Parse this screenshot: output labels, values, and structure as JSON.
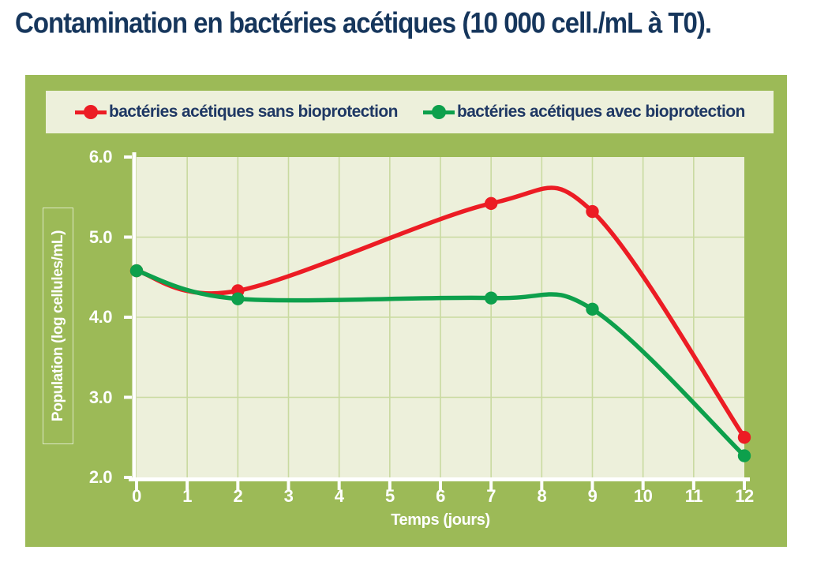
{
  "page_title": "Contamination en bactéries acétiques (10 000 cell./mL à T0).",
  "colors": {
    "panel": "#9cba57",
    "plotbg": "#edf0db",
    "grid": "#c9daa0",
    "red": "#ec1c24",
    "green": "#0da04c",
    "navy": "#1f3864",
    "title_navy": "#16365c",
    "axis_white": "#ffffff"
  },
  "chart_data": {
    "type": "line",
    "title": "Contamination en bactéries acétiques (10 000 cell./mL à T0).",
    "xlabel": "Temps (jours)",
    "ylabel": "Population (log cellules/mL)",
    "xlim": [
      0,
      12
    ],
    "ylim": [
      2.0,
      6.0
    ],
    "xticks": [
      0,
      1,
      2,
      3,
      4,
      5,
      6,
      7,
      8,
      9,
      10,
      11,
      12
    ],
    "ytick_labels": [
      "6.0",
      "5.0",
      "4.0",
      "3.0",
      "2.0"
    ],
    "ytick_values": [
      6.0,
      5.0,
      4.0,
      3.0,
      2.0
    ],
    "grid": true,
    "legend_position": "top",
    "series": [
      {
        "name": "bactéries acétiques sans bioprotection",
        "color": "#ec1c24",
        "x": [
          0,
          2,
          7,
          9,
          12
        ],
        "y": [
          4.58,
          4.33,
          5.42,
          5.32,
          2.5
        ]
      },
      {
        "name": "bactéries acétiques avec bioprotection",
        "color": "#0da04c",
        "x": [
          0,
          2,
          7,
          9,
          12
        ],
        "y": [
          4.58,
          4.23,
          4.24,
          4.1,
          2.27
        ]
      }
    ]
  }
}
